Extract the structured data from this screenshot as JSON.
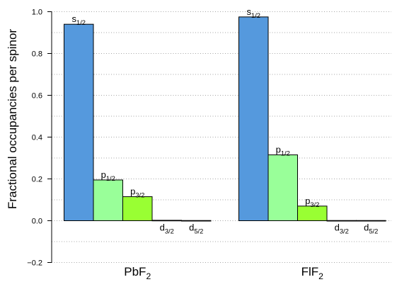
{
  "chart_data": {
    "type": "bar",
    "ylabel": "Fractional occupancies per spinor",
    "ylim": [
      -0.2,
      1.0
    ],
    "yticks": [
      -0.2,
      0.0,
      0.2,
      0.4,
      0.6,
      0.8,
      1.0
    ],
    "ytick_labels": [
      "−0.2",
      "0.0",
      "0.2",
      "0.4",
      "0.6",
      "0.8",
      "1.0"
    ],
    "grid": "horizontal dotted at 0.1 intervals",
    "groups": [
      {
        "name": "PbF",
        "name_sub": "2",
        "bars": [
          {
            "label": "s",
            "sub": "1/2",
            "value": 0.94,
            "color": "#5599dd"
          },
          {
            "label": "p",
            "sub": "1/2",
            "value": 0.195,
            "color": "#99ff99"
          },
          {
            "label": "p",
            "sub": "3/2",
            "value": 0.115,
            "color": "#99ff33"
          },
          {
            "label": "d",
            "sub": "3/2",
            "value": 0.002,
            "color": "#99ff99"
          },
          {
            "label": "d",
            "sub": "5/2",
            "value": 0.001,
            "color": "#99ff33"
          }
        ]
      },
      {
        "name": "FlF",
        "name_sub": "2",
        "bars": [
          {
            "label": "s",
            "sub": "1/2",
            "value": 0.975,
            "color": "#5599dd"
          },
          {
            "label": "p",
            "sub": "1/2",
            "value": 0.315,
            "color": "#99ff99"
          },
          {
            "label": "p",
            "sub": "3/2",
            "value": 0.07,
            "color": "#99ff33"
          },
          {
            "label": "d",
            "sub": "3/2",
            "value": 0.001,
            "color": "#99ff99"
          },
          {
            "label": "d",
            "sub": "5/2",
            "value": 0.001,
            "color": "#99ff33"
          }
        ]
      }
    ]
  }
}
